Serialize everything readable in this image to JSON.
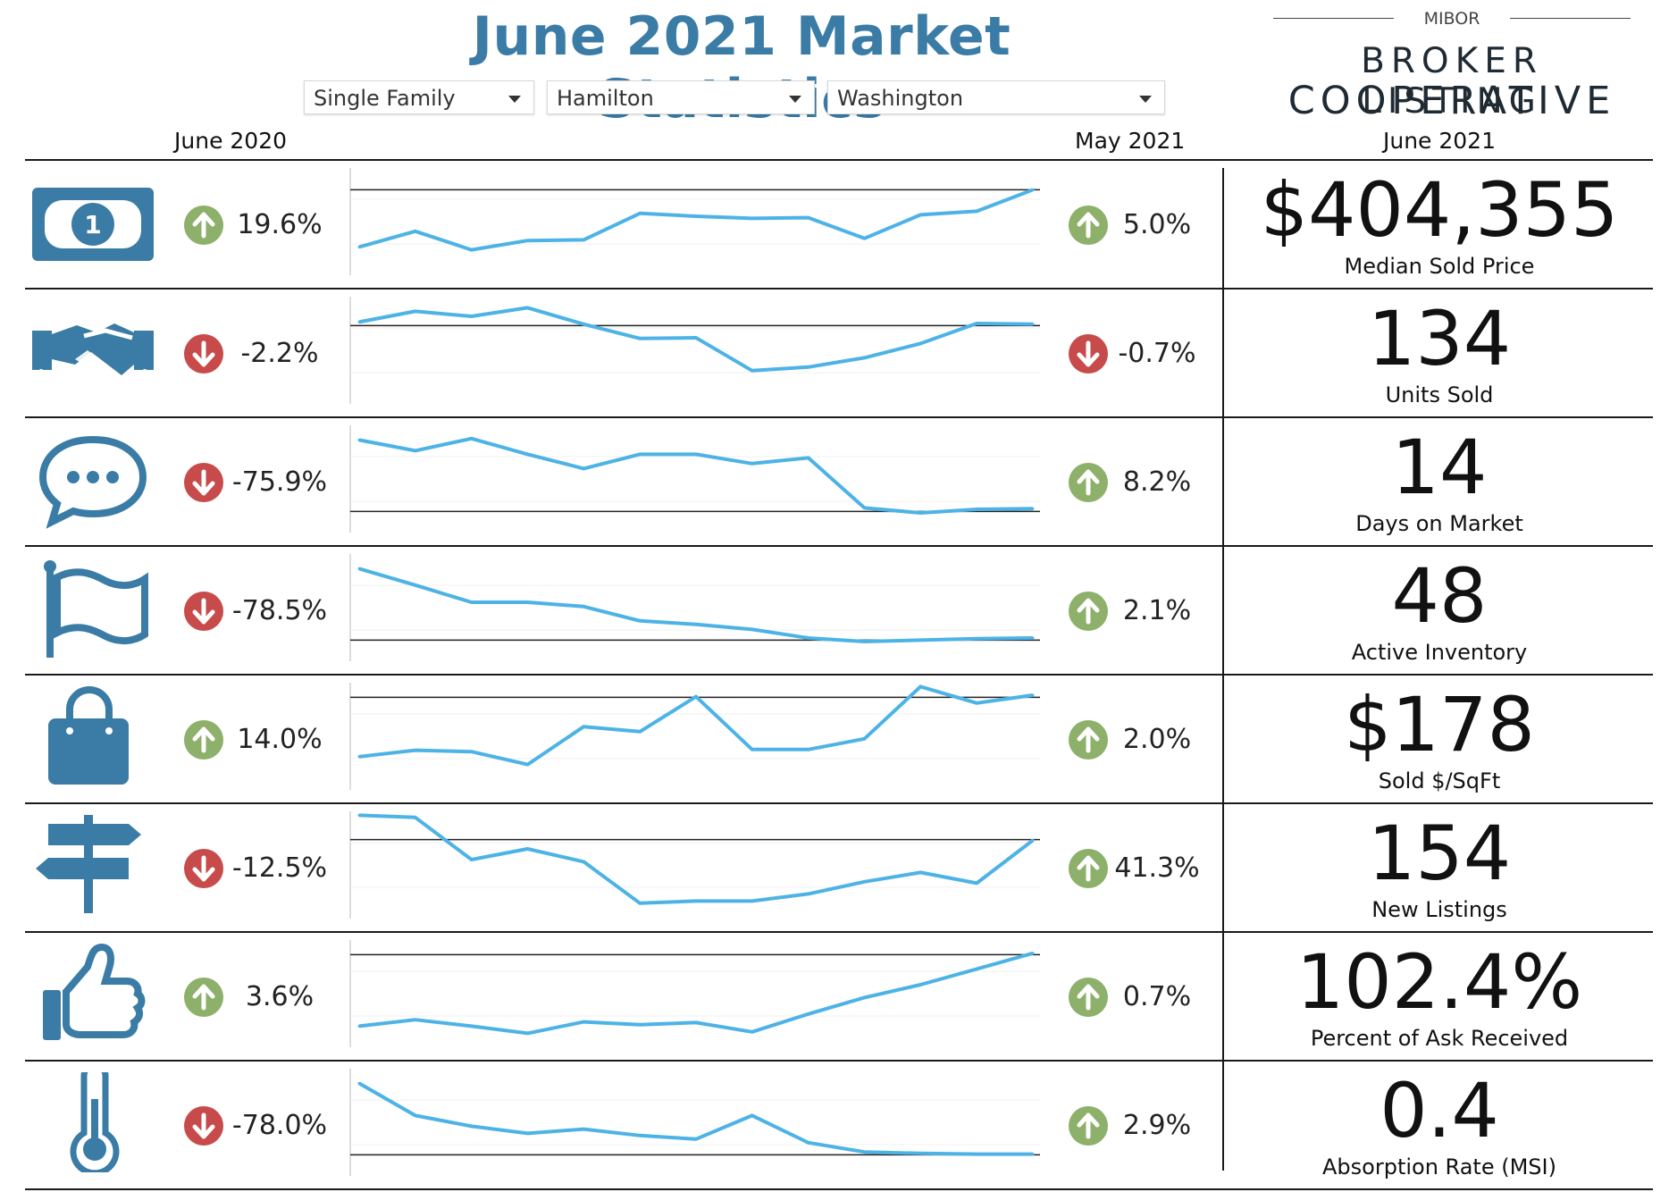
{
  "header": {
    "title": "June 2021 Market Statistics",
    "filters": [
      {
        "value": "Single Family"
      },
      {
        "value": "Hamilton"
      },
      {
        "value": "Washington"
      }
    ],
    "logo": {
      "top": "MIBOR",
      "line1": "BROKER LISTING",
      "line2": "COOPERATIVE"
    },
    "col_prev_year": "June 2020",
    "col_prev_month": "May 2021",
    "col_current": "June 2021"
  },
  "colors": {
    "accent": "#3a7ca5",
    "spark": "#4db3e6",
    "up": "#8db06a",
    "down": "#c84b4b"
  },
  "chart_data": [
    {
      "type": "line",
      "icon": "money-bill-icon",
      "metric": "Median Sold Price",
      "value": "$404,355",
      "yoy": {
        "label": "19.6%",
        "dir": "up"
      },
      "mom": {
        "label": "5.0%",
        "dir": "up"
      },
      "values": [
        0.1,
        0.32,
        0.06,
        0.19,
        0.2,
        0.57,
        0.53,
        0.5,
        0.51,
        0.22,
        0.55,
        0.6,
        0.9
      ],
      "ref": 0.9
    },
    {
      "type": "line",
      "icon": "handshake-icon",
      "metric": "Units Sold",
      "value": "134",
      "yoy": {
        "label": "-2.2%",
        "dir": "down"
      },
      "mom": {
        "label": "-0.7%",
        "dir": "down"
      },
      "values": [
        0.85,
        1.0,
        0.93,
        1.05,
        0.82,
        0.62,
        0.63,
        0.17,
        0.22,
        0.35,
        0.55,
        0.83,
        0.82
      ],
      "ref": 0.8
    },
    {
      "type": "line",
      "icon": "chat-bubble-icon",
      "metric": "Days on Market",
      "value": "14",
      "yoy": {
        "label": "-75.9%",
        "dir": "down"
      },
      "mom": {
        "label": "8.2%",
        "dir": "up"
      },
      "values": [
        1.0,
        0.85,
        1.02,
        0.8,
        0.6,
        0.8,
        0.8,
        0.67,
        0.75,
        0.05,
        -0.02,
        0.03,
        0.04
      ],
      "ref": 0.0
    },
    {
      "type": "line",
      "icon": "flag-icon",
      "metric": "Active Inventory",
      "value": "48",
      "yoy": {
        "label": "-78.5%",
        "dir": "down"
      },
      "mom": {
        "label": "2.1%",
        "dir": "up"
      },
      "values": [
        1.0,
        0.77,
        0.53,
        0.53,
        0.47,
        0.27,
        0.22,
        0.15,
        0.03,
        -0.02,
        0.0,
        0.02,
        0.03
      ],
      "ref": 0.0
    },
    {
      "type": "line",
      "icon": "shopping-bag-icon",
      "metric": "Sold $/SqFt",
      "value": "$178",
      "yoy": {
        "label": "14.0%",
        "dir": "up"
      },
      "mom": {
        "label": "2.0%",
        "dir": "up"
      },
      "values": [
        0.17,
        0.26,
        0.24,
        0.06,
        0.59,
        0.52,
        1.01,
        0.27,
        0.27,
        0.42,
        1.15,
        0.92,
        1.03
      ],
      "ref": 1.0
    },
    {
      "type": "line",
      "icon": "signpost-icon",
      "metric": "New Listings",
      "value": "154",
      "yoy": {
        "label": "-12.5%",
        "dir": "down"
      },
      "mom": {
        "label": "41.3%",
        "dir": "up"
      },
      "values": [
        1.15,
        1.12,
        0.53,
        0.68,
        0.5,
        -0.08,
        -0.05,
        -0.05,
        0.05,
        0.22,
        0.35,
        0.2,
        0.8
      ],
      "ref": 0.81
    },
    {
      "type": "line",
      "icon": "thumbs-up-icon",
      "metric": "Percent of Ask Received",
      "value": "102.4%",
      "yoy": {
        "label": "3.6%",
        "dir": "up"
      },
      "mom": {
        "label": "0.7%",
        "dir": "up"
      },
      "values": [
        0.0,
        0.09,
        0.0,
        -0.1,
        0.06,
        0.02,
        0.05,
        -0.08,
        0.17,
        0.4,
        0.58,
        0.8,
        1.02
      ],
      "ref": 1.0
    },
    {
      "type": "line",
      "icon": "thermometer-icon",
      "metric": "Absorption Rate (MSI)",
      "value": "0.4",
      "yoy": {
        "label": "-78.0%",
        "dir": "down"
      },
      "mom": {
        "label": "2.9%",
        "dir": "up"
      },
      "values": [
        1.0,
        0.55,
        0.4,
        0.3,
        0.36,
        0.27,
        0.22,
        0.55,
        0.17,
        0.04,
        0.02,
        0.01,
        0.01
      ],
      "ref": 0.0
    }
  ]
}
